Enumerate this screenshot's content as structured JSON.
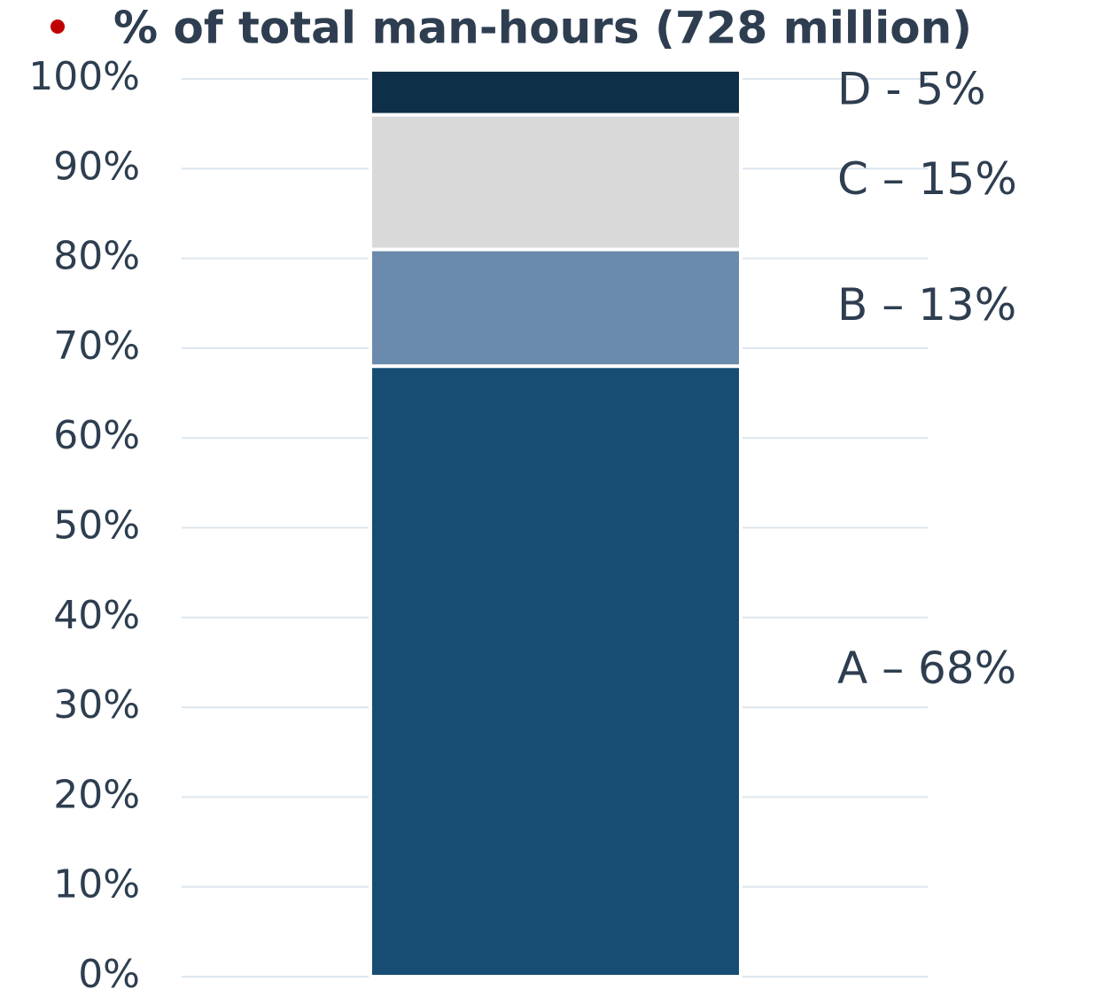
{
  "chart_data": {
    "type": "stacked_bar",
    "title": "% of total man-hours (728 million)",
    "series": [
      {
        "color": "#174d73",
        "values": [
          68
        ],
        "value_labels": [
          "A – 68%"
        ]
      },
      {
        "color": "#6a8bad",
        "values": [
          13
        ],
        "value_labels": [
          "B – 13%"
        ]
      },
      {
        "color": "#d9d9d9",
        "values": [
          15
        ],
        "value_labels": [
          "C – 15%"
        ]
      },
      {
        "color": "#0d2f47",
        "values": [
          5
        ],
        "value_labels": [
          "D - 5%"
        ]
      }
    ],
    "ylim": [
      0,
      100
    ],
    "yticks": [
      {
        "value": 0,
        "label": "0%"
      },
      {
        "value": 10,
        "label": "10%"
      },
      {
        "value": 20,
        "label": "20%"
      },
      {
        "value": 30,
        "label": "30%"
      },
      {
        "value": 40,
        "label": "40%"
      },
      {
        "value": 50,
        "label": "50%"
      },
      {
        "value": 60,
        "label": "60%"
      },
      {
        "value": 70,
        "label": "70%"
      },
      {
        "value": 80,
        "label": "80%"
      },
      {
        "value": 90,
        "label": "90%"
      },
      {
        "value": 100,
        "label": "100%"
      }
    ],
    "grid": true
  }
}
